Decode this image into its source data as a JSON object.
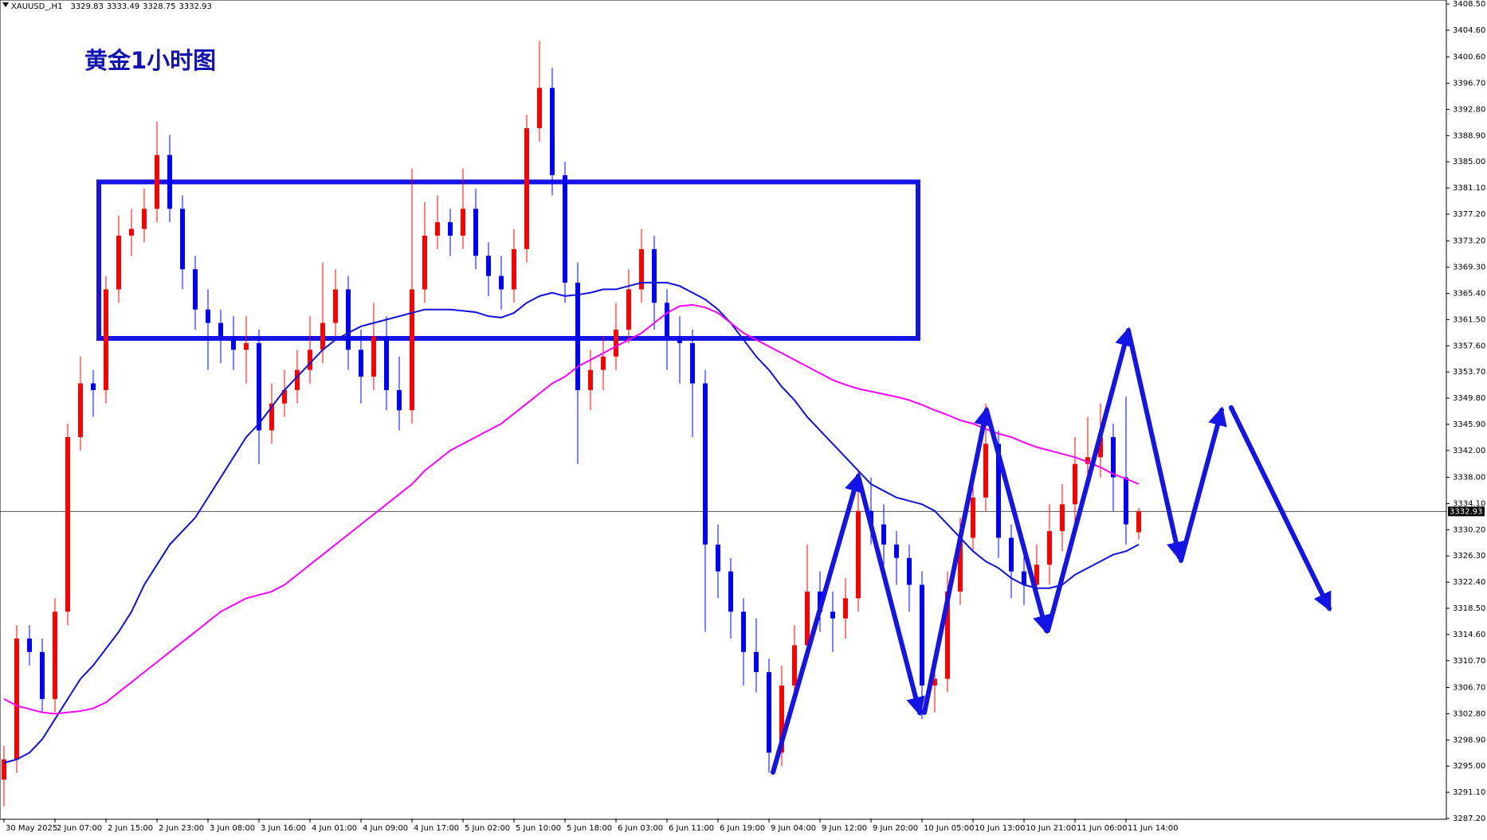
{
  "chart_data": {
    "type": "candlestick",
    "symbol": "XAUUSD_,H1",
    "header_ohlc": [
      3329.83,
      3333.49,
      3328.75,
      3332.93
    ],
    "title": "黄金1小时图",
    "categories": [
      "30 May 2025",
      null,
      null,
      null,
      "2 Jun 07:00",
      null,
      null,
      null,
      "2 Jun 15:00",
      null,
      null,
      null,
      "2 Jun 23:00",
      null,
      null,
      null,
      "3 Jun 08:00",
      null,
      null,
      null,
      "3 Jun 16:00",
      null,
      null,
      null,
      "4 Jun 01:00",
      null,
      null,
      null,
      "4 Jun 09:00",
      null,
      null,
      null,
      "4 Jun 17:00",
      null,
      null,
      null,
      "5 Jun 02:00",
      null,
      null,
      null,
      "5 Jun 10:00",
      null,
      null,
      null,
      "5 Jun 18:00",
      null,
      null,
      null,
      "6 Jun 03:00",
      null,
      null,
      null,
      "6 Jun 11:00",
      null,
      null,
      null,
      "6 Jun 19:00",
      null,
      null,
      null,
      "9 Jun 04:00",
      null,
      null,
      null,
      "9 Jun 12:00",
      null,
      null,
      null,
      "9 Jun 20:00",
      null,
      null,
      null,
      "10 Jun 05:00",
      null,
      null,
      null,
      "10 Jun 13:00",
      null,
      null,
      null,
      "10 Jun 21:00",
      null,
      null,
      null,
      "11 Jun 06:00",
      null,
      null,
      null,
      "11 Jun 14:00",
      null
    ],
    "open": [
      3293,
      3296,
      3314,
      3312,
      3305,
      3318,
      3344,
      3352,
      3351,
      3366,
      3374,
      3375,
      3378,
      3386,
      3378,
      3369,
      3363,
      3361,
      3359,
      3357,
      3358,
      3345,
      3349,
      3351,
      3354,
      3357,
      3361,
      3366,
      3357,
      3353,
      3359,
      3351,
      3348,
      3366,
      3374,
      3376,
      3374,
      3378,
      3371,
      3368,
      3366,
      3372,
      3390,
      3396,
      3383,
      3367,
      3351,
      3354,
      3356,
      3360,
      3366,
      3372,
      3364,
      3359,
      3358,
      3352,
      3328,
      3324,
      3318,
      3312,
      3309,
      3297,
      3307,
      3313,
      3321,
      3318,
      3317,
      3320,
      3333,
      3331,
      3328,
      3326,
      3322,
      3307,
      3308,
      3321,
      3329,
      3335,
      3343,
      3329,
      3324,
      3322,
      3325,
      3330,
      3334,
      3340,
      3341,
      3344,
      3338,
      3329.83
    ],
    "high": [
      3298,
      3316,
      3316,
      3314,
      3320,
      3346,
      3356,
      3354,
      3368,
      3377,
      3378,
      3381,
      3391,
      3389,
      3380,
      3371,
      3366,
      3363,
      3362,
      3362,
      3360,
      3352,
      3354,
      3357,
      3362,
      3370,
      3369,
      3368,
      3360,
      3364,
      3362,
      3356,
      3384,
      3379,
      3380,
      3378,
      3384,
      3381,
      3373,
      3371,
      3375,
      3392,
      3403,
      3399,
      3385,
      3370,
      3357,
      3359,
      3364,
      3369,
      3375,
      3374,
      3366,
      3362,
      3360,
      3354,
      3331,
      3326,
      3320,
      3317,
      3311,
      3310,
      3316,
      3328,
      3324,
      3321,
      3323,
      3339,
      3338,
      3334,
      3330,
      3328,
      3324,
      3311,
      3324,
      3332,
      3338,
      3349,
      3345,
      3331,
      3327,
      3328,
      3334,
      3337,
      3344,
      3347,
      3349,
      3346,
      3350,
      3333.49
    ],
    "low": [
      3289,
      3294,
      3310,
      3303,
      3303,
      3316,
      3342,
      3347,
      3349,
      3364,
      3371,
      3373,
      3376,
      3376,
      3366,
      3360,
      3354,
      3355,
      3354,
      3352,
      3340,
      3343,
      3347,
      3349,
      3352,
      3355,
      3359,
      3354,
      3349,
      3351,
      3348,
      3345,
      3346,
      3364,
      3372,
      3371,
      3372,
      3369,
      3365,
      3363,
      3364,
      3370,
      3388,
      3380,
      3364,
      3340,
      3348,
      3351,
      3354,
      3358,
      3364,
      3360,
      3354,
      3352,
      3344,
      3315,
      3320,
      3314,
      3307,
      3306,
      3294,
      3295,
      3305,
      3311,
      3315,
      3312,
      3314,
      3318,
      3328,
      3325,
      3322,
      3318,
      3302,
      3303,
      3306,
      3319,
      3327,
      3333,
      3326,
      3320,
      3319,
      3320,
      3322,
      3327,
      3331,
      3337,
      3338,
      3333,
      3328,
      3328.75
    ],
    "close": [
      3296,
      3314,
      3312,
      3305,
      3318,
      3344,
      3352,
      3351,
      3366,
      3374,
      3375,
      3378,
      3386,
      3378,
      3369,
      3363,
      3361,
      3359,
      3357,
      3358,
      3345,
      3349,
      3351,
      3354,
      3357,
      3361,
      3366,
      3357,
      3353,
      3359,
      3351,
      3348,
      3366,
      3374,
      3376,
      3374,
      3378,
      3371,
      3368,
      3366,
      3372,
      3390,
      3396,
      3383,
      3367,
      3351,
      3354,
      3356,
      3360,
      3366,
      3372,
      3364,
      3359,
      3358,
      3352,
      3328,
      3324,
      3318,
      3312,
      3309,
      3297,
      3307,
      3313,
      3321,
      3318,
      3317,
      3320,
      3333,
      3331,
      3328,
      3326,
      3322,
      3307,
      3308,
      3321,
      3329,
      3335,
      3343,
      3329,
      3324,
      3322,
      3325,
      3330,
      3334,
      3340,
      3341,
      3344,
      3338,
      3331,
      3332.93
    ],
    "up_color": "#ff0000",
    "down_color": "#0000ff",
    "series": [
      {
        "color": "#1010e0",
        "values": [
          3295.5,
          3296,
          3297,
          3299,
          3302,
          3305,
          3308,
          3310,
          3312.5,
          3315,
          3318,
          3322,
          3325,
          3328,
          3330,
          3332,
          3335,
          3338,
          3341,
          3344,
          3346,
          3348.5,
          3351,
          3353,
          3355,
          3357,
          3358.5,
          3359.5,
          3360.5,
          3361,
          3361.5,
          3362,
          3362.5,
          3363,
          3363,
          3363,
          3362.8,
          3362.6,
          3362,
          3361.8,
          3362.5,
          3364,
          3365,
          3365.5,
          3365,
          3365.2,
          3365.5,
          3366,
          3366,
          3366.5,
          3367,
          3367,
          3367,
          3366.5,
          3365.5,
          3364.5,
          3363,
          3361,
          3358.5,
          3356,
          3354,
          3351.5,
          3349.5,
          3347,
          3345,
          3343,
          3341,
          3339,
          3337,
          3336,
          3335,
          3334.5,
          3334,
          3333,
          3331,
          3329,
          3327,
          3325.5,
          3324.5,
          3323,
          3322,
          3321.5,
          3321.5,
          3322,
          3323.5,
          3324.5,
          3325.5,
          3326.5,
          3327,
          3328
        ]
      },
      {
        "color": "#ff00ff",
        "values": [
          3305,
          3304,
          3303.5,
          3303,
          3302.8,
          3303,
          3303.2,
          3303.6,
          3304.5,
          3306,
          3307.5,
          3309,
          3310.5,
          3312,
          3313.5,
          3315,
          3316.5,
          3318,
          3319,
          3320,
          3320.5,
          3321,
          3322,
          3323.5,
          3325,
          3326.5,
          3328,
          3329.5,
          3331,
          3332.5,
          3334,
          3335.5,
          3337,
          3339,
          3340.5,
          3342,
          3343,
          3344,
          3345,
          3346,
          3347.5,
          3349,
          3350.5,
          3352,
          3353,
          3354.5,
          3355.5,
          3356.5,
          3357.5,
          3358.5,
          3359.5,
          3361,
          3362.5,
          3363.5,
          3363.7,
          3363.3,
          3362.5,
          3361,
          3359.5,
          3358.5,
          3357.5,
          3356.5,
          3355.5,
          3354.5,
          3353.5,
          3352.5,
          3351.8,
          3351.2,
          3350.8,
          3350.4,
          3350,
          3349.5,
          3348.8,
          3348,
          3347.3,
          3346.5,
          3346,
          3345.2,
          3344.5,
          3344,
          3343.2,
          3342.5,
          3342,
          3341.5,
          3341,
          3340.3,
          3339.5,
          3338.5,
          3337.8,
          3337
        ]
      }
    ],
    "last_price": 3332.93,
    "ylim": [
      3287.2,
      3408.5
    ],
    "yticks": [
      {
        "value": 3408.5,
        "label": "3408.50"
      },
      {
        "value": 3404.6,
        "label": "3404.60"
      },
      {
        "value": 3400.6,
        "label": "3400.60"
      },
      {
        "value": 3396.7,
        "label": "3396.70"
      },
      {
        "value": 3392.8,
        "label": "3392.80"
      },
      {
        "value": 3388.9,
        "label": "3388.90"
      },
      {
        "value": 3385,
        "label": "3385.00"
      },
      {
        "value": 3381.1,
        "label": "3381.10"
      },
      {
        "value": 3377.2,
        "label": "3377.20"
      },
      {
        "value": 3373.2,
        "label": "3373.20"
      },
      {
        "value": 3369.3,
        "label": "3369.30"
      },
      {
        "value": 3365.4,
        "label": "3365.40"
      },
      {
        "value": 3361.5,
        "label": "3361.50"
      },
      {
        "value": 3357.6,
        "label": "3357.60"
      },
      {
        "value": 3353.7,
        "label": "3353.70"
      },
      {
        "value": 3349.8,
        "label": "3349.80"
      },
      {
        "value": 3345.9,
        "label": "3345.90"
      },
      {
        "value": 3342,
        "label": "3342.00"
      },
      {
        "value": 3338,
        "label": "3338.00"
      },
      {
        "value": 3334.1,
        "label": "3334.10"
      },
      {
        "value": 3330.2,
        "label": "3330.20"
      },
      {
        "value": 3326.3,
        "label": "3326.30"
      },
      {
        "value": 3322.4,
        "label": "3322.40"
      },
      {
        "value": 3318.5,
        "label": "3318.50"
      },
      {
        "value": 3314.6,
        "label": "3314.60"
      },
      {
        "value": 3310.7,
        "label": "3310.70"
      },
      {
        "value": 3306.7,
        "label": "3306.70"
      },
      {
        "value": 3302.8,
        "label": "3302.80"
      },
      {
        "value": 3298.9,
        "label": "3298.90"
      },
      {
        "value": 3295,
        "label": "3295.00"
      },
      {
        "value": 3291.1,
        "label": "3291.10"
      },
      {
        "value": 3287.2,
        "label": "3287.20"
      }
    ],
    "box": [
      3382,
      3358.7
    ]
  }
}
